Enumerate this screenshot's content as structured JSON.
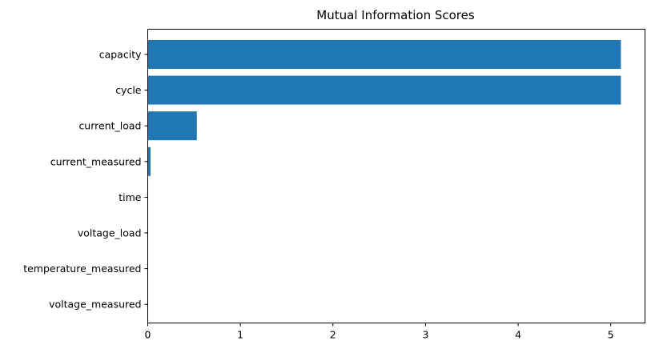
{
  "chart_data": {
    "type": "bar",
    "orientation": "horizontal",
    "title": "Mutual Information Scores",
    "xlabel": "",
    "ylabel": "",
    "categories": [
      "capacity",
      "cycle",
      "current_load",
      "current_measured",
      "time",
      "voltage_load",
      "temperature_measured",
      "voltage_measured"
    ],
    "values": [
      5.11,
      5.11,
      0.53,
      0.03,
      0.0,
      0.0,
      0.0,
      0.0
    ],
    "xlim": [
      0,
      5.37
    ],
    "xticks": [
      0,
      1,
      2,
      3,
      4,
      5
    ],
    "bar_color": "#1f77b4",
    "grid": false,
    "legend": "none"
  }
}
